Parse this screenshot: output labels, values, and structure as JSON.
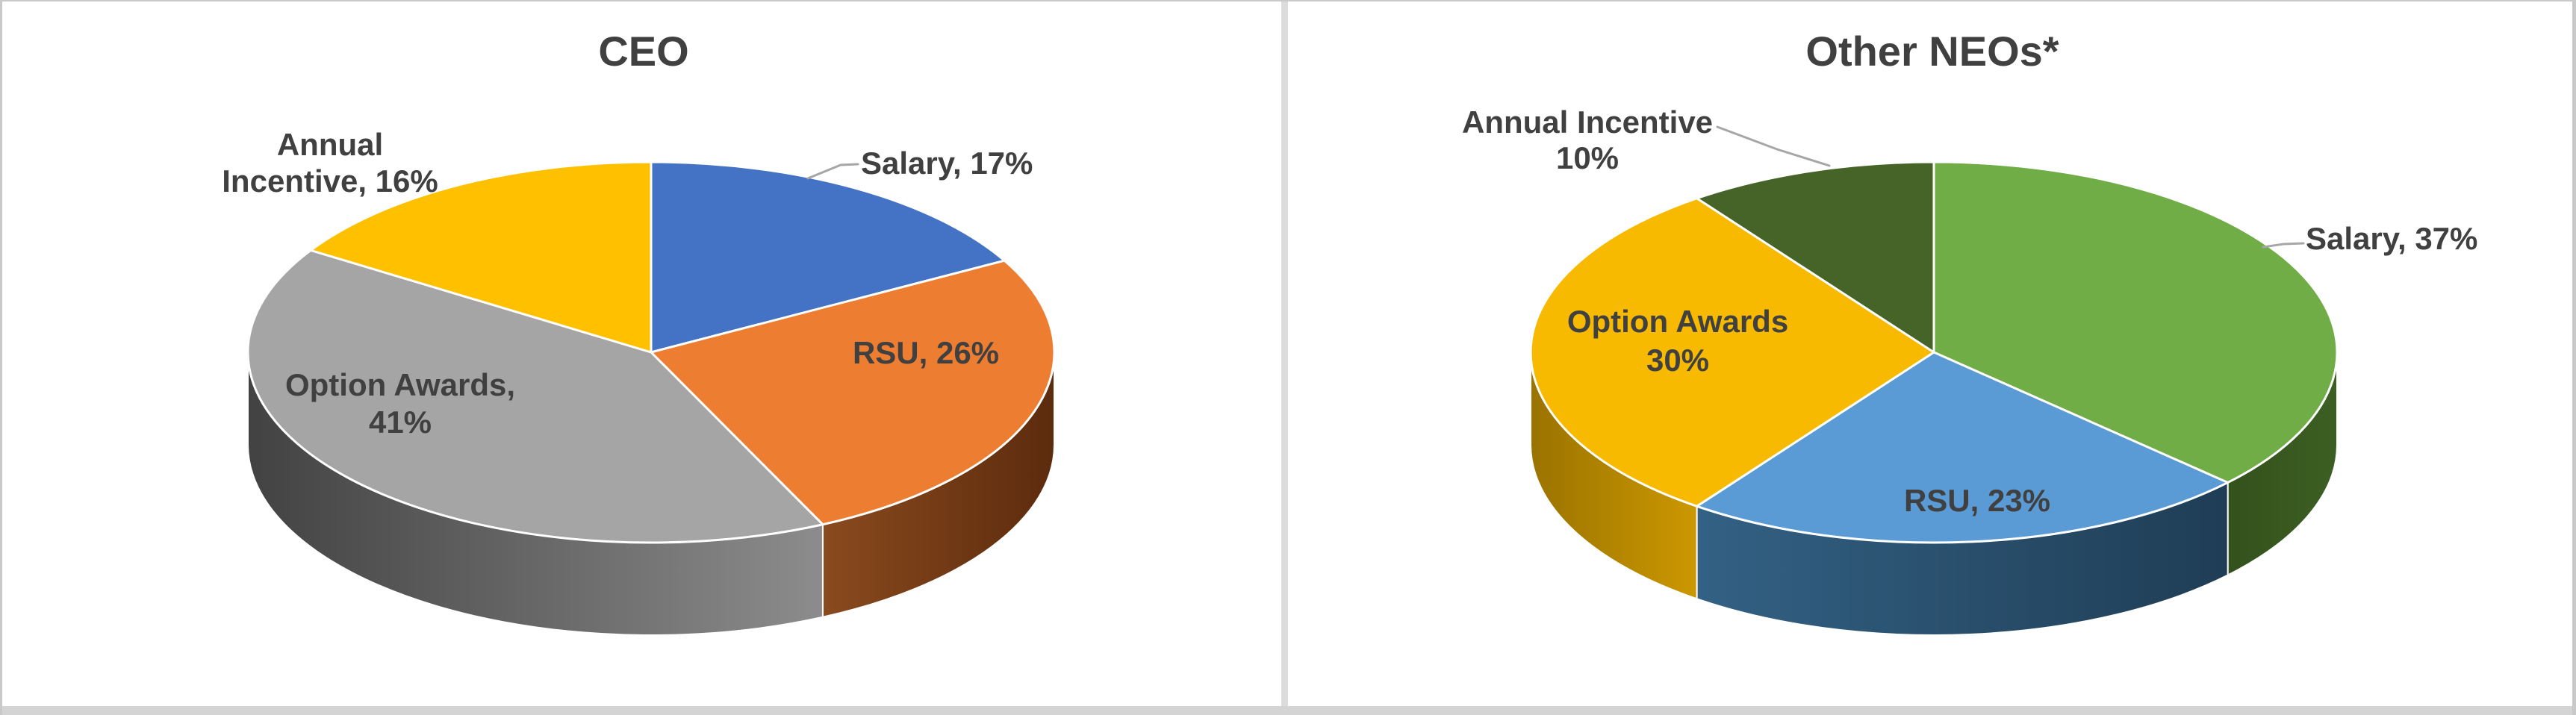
{
  "style": {
    "background": "#FFFFFF",
    "frame_border_color": "#C9C9C9",
    "divider_color": "#DCDCDC",
    "bottom_bar_color": "#D4D4D4",
    "text_color": "#404040",
    "leader_line_color": "#A6A6A6",
    "slice_outline_color": "#FFFFFF"
  },
  "chart_data": [
    {
      "type": "pie",
      "style_3d": true,
      "title": "CEO",
      "start_angle_deg": 0,
      "direction": "clockwise",
      "unit": "percent",
      "legend": "none",
      "categories": [
        "Salary",
        "RSU",
        "Option Awards",
        "Annual Incentive"
      ],
      "values": [
        17,
        26,
        41,
        16
      ],
      "slices": [
        {
          "name": "Salary",
          "value": 17,
          "color": "#4472C4",
          "side_gradient": [
            "#3A62A8",
            "#2A4778"
          ],
          "label_lines": [
            "Salary, 17%"
          ],
          "label_placement": "outside-right"
        },
        {
          "name": "RSU",
          "value": 26,
          "color": "#ED7D31",
          "side_gradient": [
            "#8A4A1E",
            "#5C2B0D"
          ],
          "label_lines": [
            "RSU, 26%"
          ],
          "label_placement": "inside"
        },
        {
          "name": "Option Awards",
          "value": 41,
          "color": "#A5A5A5",
          "side_gradient": [
            "#424242",
            "#8C8C8C"
          ],
          "label_lines": [
            "Option Awards,",
            "41%"
          ],
          "label_placement": "inside"
        },
        {
          "name": "Annual Incentive",
          "value": 16,
          "color": "#FFC000",
          "side_gradient": [
            "#9C7500",
            "#C49300"
          ],
          "label_lines": [
            "Annual",
            "Incentive, 16%"
          ],
          "label_placement": "outside-left"
        }
      ]
    },
    {
      "type": "pie",
      "style_3d": true,
      "title": "Other NEOs*",
      "start_angle_deg": 0,
      "direction": "clockwise",
      "unit": "percent",
      "legend": "none",
      "categories": [
        "Salary",
        "RSU",
        "Option Awards",
        "Annual Incentive"
      ],
      "values": [
        37,
        23,
        30,
        10
      ],
      "slices": [
        {
          "name": "Salary",
          "value": 37,
          "color": "#70AD47",
          "side_gradient": [
            "#33511C",
            "#3C5F23"
          ],
          "label_lines": [
            "Salary, 37%"
          ],
          "label_placement": "outside-right"
        },
        {
          "name": "RSU",
          "value": 23,
          "color": "#5B9BD5",
          "side_gradient": [
            "#336184",
            "#1F3D55"
          ],
          "label_lines": [
            "RSU, 23%"
          ],
          "label_placement": "inside"
        },
        {
          "name": "Option Awards",
          "value": 30,
          "color": "#F7BA00",
          "side_gradient": [
            "#9A7300",
            "#CC9800"
          ],
          "label_lines": [
            "Option Awards",
            "30%"
          ],
          "label_placement": "inside"
        },
        {
          "name": "Annual Incentive",
          "value": 10,
          "color": "#466428",
          "side_gradient": [
            "#2F4417",
            "#2F4417"
          ],
          "label_lines": [
            "Annual Incentive",
            "10%"
          ],
          "label_placement": "outside-left"
        }
      ]
    }
  ]
}
